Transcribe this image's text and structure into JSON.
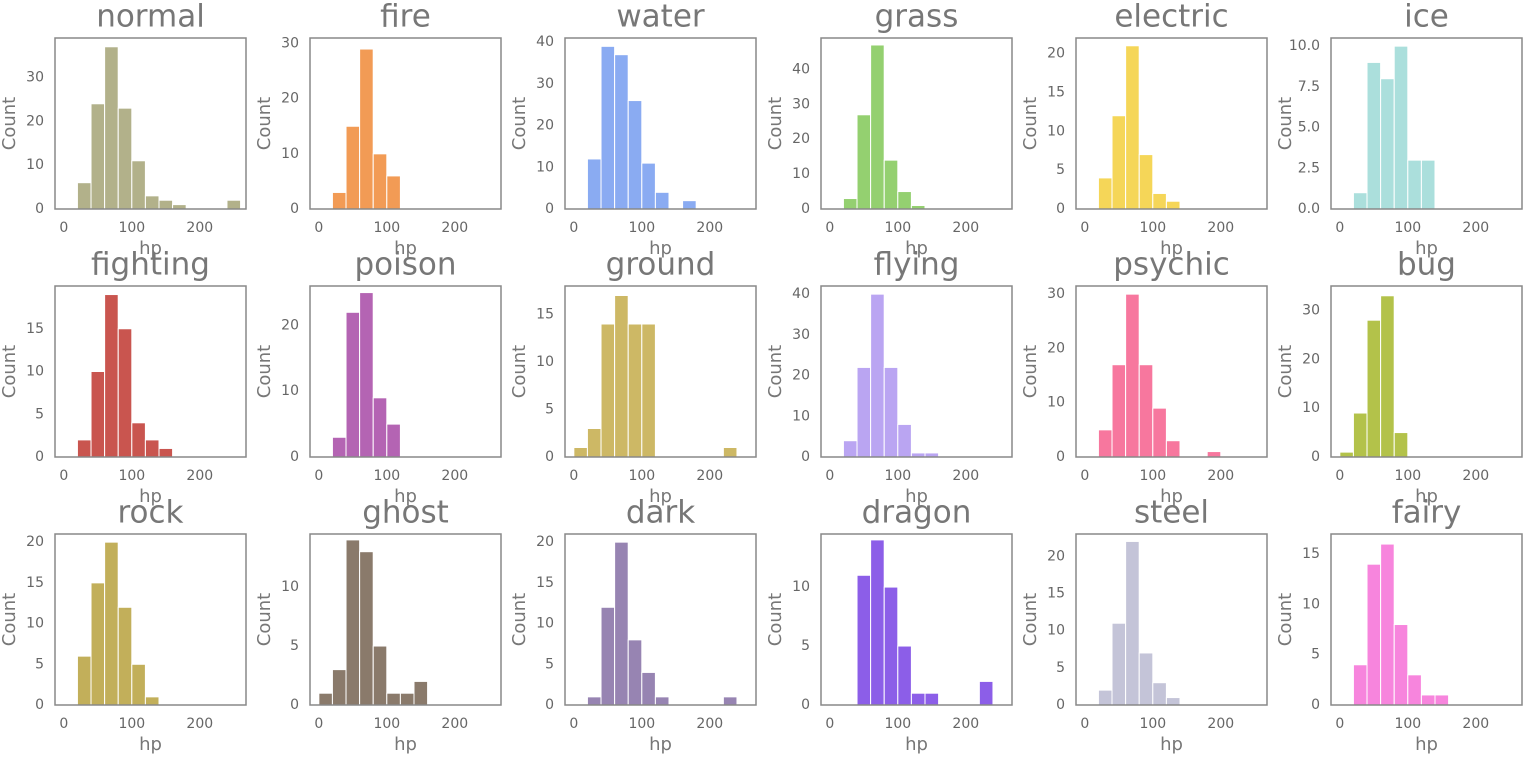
{
  "chart_data": [
    {
      "type": "histogram",
      "title": "normal",
      "xlabel": "hp",
      "ylabel": "Count",
      "color": "#b2b18a",
      "bins": [
        0,
        20,
        40,
        60,
        80,
        100,
        120,
        140,
        160,
        180,
        200,
        220,
        240,
        260
      ],
      "values": [
        0,
        6,
        24,
        37,
        23,
        11,
        3,
        2,
        1,
        0,
        0,
        0,
        2
      ],
      "xlim": [
        -13,
        268
      ],
      "xticks": [
        0,
        100,
        200
      ],
      "ylim": [
        0,
        39
      ],
      "yticks": [
        0,
        10,
        20,
        30
      ]
    },
    {
      "type": "histogram",
      "title": "fire",
      "xlabel": "hp",
      "ylabel": "Count",
      "color": "#f29b55",
      "bins": [
        0,
        20,
        40,
        60,
        80,
        100,
        120,
        140,
        160,
        180,
        200,
        220,
        240,
        260
      ],
      "values": [
        0,
        3,
        15,
        29,
        10,
        6,
        0,
        0,
        0,
        0,
        0,
        0,
        0
      ],
      "xlim": [
        -13,
        268
      ],
      "xticks": [
        0,
        100,
        200
      ],
      "ylim": [
        0,
        31
      ],
      "yticks": [
        0,
        10,
        20,
        30
      ]
    },
    {
      "type": "histogram",
      "title": "water",
      "xlabel": "hp",
      "ylabel": "Count",
      "color": "#8aabf2",
      "bins": [
        0,
        20,
        40,
        60,
        80,
        100,
        120,
        140,
        160,
        180,
        200,
        220,
        240,
        260
      ],
      "values": [
        0,
        12,
        39,
        37,
        26,
        11,
        4,
        0,
        2,
        0,
        0,
        0,
        0
      ],
      "xlim": [
        -13,
        268
      ],
      "xticks": [
        0,
        100,
        200
      ],
      "ylim": [
        0,
        41
      ],
      "yticks": [
        0,
        10,
        20,
        30,
        40
      ]
    },
    {
      "type": "histogram",
      "title": "grass",
      "xlabel": "hp",
      "ylabel": "Count",
      "color": "#94d070",
      "bins": [
        0,
        20,
        40,
        60,
        80,
        100,
        120,
        140,
        160,
        180,
        200,
        220,
        240,
        260
      ],
      "values": [
        0,
        3,
        27,
        47,
        14,
        5,
        1,
        0,
        0,
        0,
        0,
        0,
        0
      ],
      "xlim": [
        -13,
        268
      ],
      "xticks": [
        0,
        100,
        200
      ],
      "ylim": [
        0,
        49
      ],
      "yticks": [
        0,
        10,
        20,
        30,
        40
      ]
    },
    {
      "type": "histogram",
      "title": "electric",
      "xlabel": "hp",
      "ylabel": "Count",
      "color": "#f5d658",
      "bins": [
        0,
        20,
        40,
        60,
        80,
        100,
        120,
        140,
        160,
        180,
        200,
        220,
        240,
        260
      ],
      "values": [
        0,
        4,
        12,
        21,
        7,
        2,
        1,
        0,
        0,
        0,
        0,
        0,
        0
      ],
      "xlim": [
        -13,
        268
      ],
      "xticks": [
        0,
        100,
        200
      ],
      "ylim": [
        0,
        22
      ],
      "yticks": [
        0,
        5,
        10,
        15,
        20
      ]
    },
    {
      "type": "histogram",
      "title": "ice",
      "xlabel": "hp",
      "ylabel": "Count",
      "color": "#abdfdc",
      "bins": [
        0,
        20,
        40,
        60,
        80,
        100,
        120,
        140,
        160,
        180,
        200,
        220,
        240,
        260
      ],
      "values": [
        0,
        1,
        9,
        8,
        10,
        3,
        3,
        0,
        0,
        0,
        0,
        0,
        0
      ],
      "xlim": [
        -13,
        268
      ],
      "xticks": [
        0,
        100,
        200
      ],
      "ylim": [
        0,
        10.5
      ],
      "yticks": [
        {
          "value": 0,
          "label": "0.0"
        },
        2.5,
        {
          "value": 5,
          "label": "5.0"
        },
        7.5,
        {
          "value": 10,
          "label": "10.0"
        }
      ]
    },
    {
      "type": "histogram",
      "title": "fighting",
      "xlabel": "hp",
      "ylabel": "Count",
      "color": "#c9554f",
      "bins": [
        0,
        20,
        40,
        60,
        80,
        100,
        120,
        140,
        160,
        180,
        200,
        220,
        240,
        260
      ],
      "values": [
        0,
        2,
        10,
        19,
        15,
        4,
        2,
        1,
        0,
        0,
        0,
        0,
        0
      ],
      "xlim": [
        -13,
        268
      ],
      "xticks": [
        0,
        100,
        200
      ],
      "ylim": [
        0,
        20
      ],
      "yticks": [
        0,
        5,
        10,
        15
      ]
    },
    {
      "type": "histogram",
      "title": "poison",
      "xlabel": "hp",
      "ylabel": "Count",
      "color": "#b464b3",
      "bins": [
        0,
        20,
        40,
        60,
        80,
        100,
        120,
        140,
        160,
        180,
        200,
        220,
        240,
        260
      ],
      "values": [
        0,
        3,
        22,
        25,
        9,
        5,
        0,
        0,
        0,
        0,
        0,
        0,
        0
      ],
      "xlim": [
        -13,
        268
      ],
      "xticks": [
        0,
        100,
        200
      ],
      "ylim": [
        0,
        26
      ],
      "yticks": [
        0,
        10,
        20
      ]
    },
    {
      "type": "histogram",
      "title": "ground",
      "xlabel": "hp",
      "ylabel": "Count",
      "color": "#cdb865",
      "bins": [
        0,
        20,
        40,
        60,
        80,
        100,
        120,
        140,
        160,
        180,
        200,
        220,
        240,
        260
      ],
      "values": [
        1,
        3,
        14,
        17,
        14,
        14,
        0,
        0,
        0,
        0,
        0,
        1,
        0
      ],
      "xlim": [
        -13,
        268
      ],
      "xticks": [
        0,
        100,
        200
      ],
      "ylim": [
        0,
        18
      ],
      "yticks": [
        0,
        5,
        10,
        15
      ]
    },
    {
      "type": "histogram",
      "title": "flying",
      "xlabel": "hp",
      "ylabel": "Count",
      "color": "#baa5f2",
      "bins": [
        0,
        20,
        40,
        60,
        80,
        100,
        120,
        140,
        160,
        180,
        200,
        220,
        240,
        260
      ],
      "values": [
        0,
        4,
        22,
        40,
        22,
        8,
        1,
        1,
        0,
        0,
        0,
        0,
        0
      ],
      "xlim": [
        -13,
        268
      ],
      "xticks": [
        0,
        100,
        200
      ],
      "ylim": [
        0,
        42
      ],
      "yticks": [
        0,
        10,
        20,
        30,
        40
      ]
    },
    {
      "type": "histogram",
      "title": "psychic",
      "xlabel": "hp",
      "ylabel": "Count",
      "color": "#f7779e",
      "bins": [
        0,
        20,
        40,
        60,
        80,
        100,
        120,
        140,
        160,
        180,
        200,
        220,
        240,
        260
      ],
      "values": [
        0,
        5,
        17,
        30,
        17,
        9,
        3,
        0,
        0,
        1,
        0,
        0,
        0
      ],
      "xlim": [
        -13,
        268
      ],
      "xticks": [
        0,
        100,
        200
      ],
      "ylim": [
        0,
        31.5
      ],
      "yticks": [
        0,
        10,
        20,
        30
      ]
    },
    {
      "type": "histogram",
      "title": "bug",
      "xlabel": "hp",
      "ylabel": "Count",
      "color": "#b3c24a",
      "bins": [
        0,
        20,
        40,
        60,
        80,
        100,
        120,
        140,
        160,
        180,
        200,
        220,
        240,
        260
      ],
      "values": [
        1,
        9,
        28,
        33,
        5,
        0,
        0,
        0,
        0,
        0,
        0,
        0,
        0
      ],
      "xlim": [
        -13,
        268
      ],
      "xticks": [
        0,
        100,
        200
      ],
      "ylim": [
        0,
        35
      ],
      "yticks": [
        0,
        10,
        20,
        30
      ]
    },
    {
      "type": "histogram",
      "title": "rock",
      "xlabel": "hp",
      "ylabel": "Count",
      "color": "#c2af5a",
      "bins": [
        0,
        20,
        40,
        60,
        80,
        100,
        120,
        140,
        160,
        180,
        200,
        220,
        240,
        260
      ],
      "values": [
        0,
        6,
        15,
        20,
        12,
        5,
        1,
        0,
        0,
        0,
        0,
        0,
        0
      ],
      "xlim": [
        -13,
        268
      ],
      "xticks": [
        0,
        100,
        200
      ],
      "ylim": [
        0,
        21
      ],
      "yticks": [
        0,
        5,
        10,
        15,
        20
      ]
    },
    {
      "type": "histogram",
      "title": "ghost",
      "xlabel": "hp",
      "ylabel": "Count",
      "color": "#8a7a6b",
      "bins": [
        0,
        20,
        40,
        60,
        80,
        100,
        120,
        140,
        160,
        180,
        200,
        220,
        240,
        260
      ],
      "values": [
        1,
        3,
        14,
        13,
        5,
        1,
        1,
        2,
        0,
        0,
        0,
        0,
        0
      ],
      "xlim": [
        -13,
        268
      ],
      "xticks": [
        0,
        100,
        200
      ],
      "ylim": [
        0,
        14.5
      ],
      "yticks": [
        0,
        5,
        10
      ]
    },
    {
      "type": "histogram",
      "title": "dark",
      "xlabel": "hp",
      "ylabel": "Count",
      "color": "#9784b2",
      "bins": [
        0,
        20,
        40,
        60,
        80,
        100,
        120,
        140,
        160,
        180,
        200,
        220,
        240,
        260
      ],
      "values": [
        0,
        1,
        12,
        20,
        8,
        4,
        1,
        0,
        0,
        0,
        0,
        1,
        0
      ],
      "xlim": [
        -13,
        268
      ],
      "xticks": [
        0,
        100,
        200
      ],
      "ylim": [
        0,
        21
      ],
      "yticks": [
        0,
        5,
        10,
        15,
        20
      ]
    },
    {
      "type": "histogram",
      "title": "dragon",
      "xlabel": "hp",
      "ylabel": "Count",
      "color": "#8c5ee8",
      "bins": [
        0,
        20,
        40,
        60,
        80,
        100,
        120,
        140,
        160,
        180,
        200,
        220,
        240,
        260
      ],
      "values": [
        0,
        0,
        11,
        14,
        10,
        5,
        1,
        1,
        0,
        0,
        0,
        2,
        0
      ],
      "xlim": [
        -13,
        268
      ],
      "xticks": [
        0,
        100,
        200
      ],
      "ylim": [
        0,
        14.5
      ],
      "yticks": [
        0,
        5,
        10
      ]
    },
    {
      "type": "histogram",
      "title": "steel",
      "xlabel": "hp",
      "ylabel": "Count",
      "color": "#c4c4d8",
      "bins": [
        0,
        20,
        40,
        60,
        80,
        100,
        120,
        140,
        160,
        180,
        200,
        220,
        240,
        260
      ],
      "values": [
        0,
        2,
        11,
        22,
        7,
        3,
        1,
        0,
        0,
        0,
        0,
        0,
        0
      ],
      "xlim": [
        -13,
        268
      ],
      "xticks": [
        0,
        100,
        200
      ],
      "ylim": [
        0,
        23
      ],
      "yticks": [
        0,
        5,
        10,
        15,
        20
      ]
    },
    {
      "type": "histogram",
      "title": "fairy",
      "xlabel": "hp",
      "ylabel": "Count",
      "color": "#f785dd",
      "bins": [
        0,
        20,
        40,
        60,
        80,
        100,
        120,
        140,
        160,
        180,
        200,
        220,
        240,
        260
      ],
      "values": [
        0,
        4,
        14,
        16,
        8,
        3,
        1,
        1,
        0,
        0,
        0,
        0,
        0
      ],
      "xlim": [
        -13,
        268
      ],
      "xticks": [
        0,
        100,
        200
      ],
      "ylim": [
        0,
        17
      ],
      "yticks": [
        0,
        5,
        10,
        15
      ]
    }
  ]
}
